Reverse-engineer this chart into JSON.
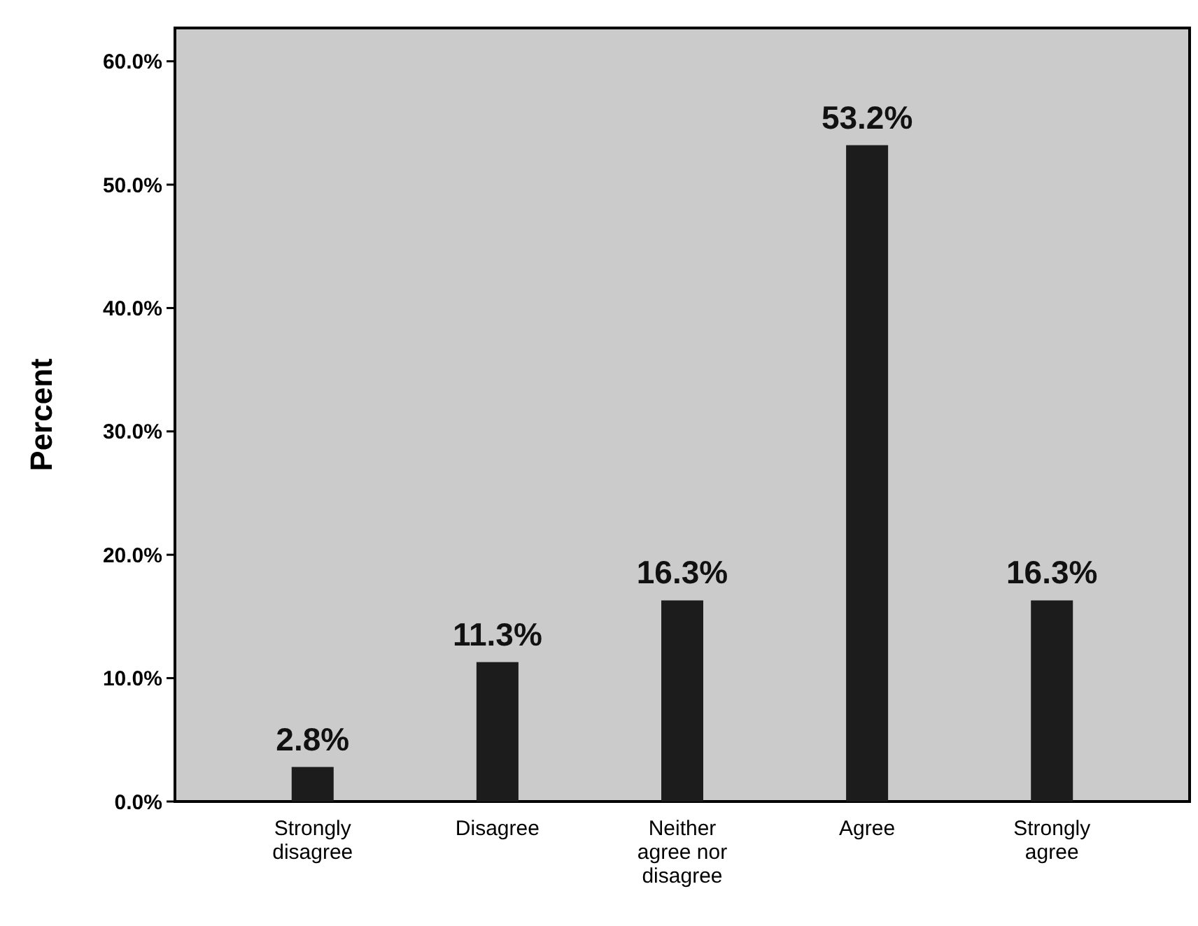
{
  "chart_data": {
    "type": "bar",
    "ylabel": "Percent",
    "categories": [
      "Strongly disagree",
      "Disagree",
      "Neither agree nor disagree",
      "Agree",
      "Strongly agree"
    ],
    "values": [
      2.8,
      11.3,
      16.3,
      53.2,
      16.3
    ],
    "value_labels": [
      "2.8%",
      "11.3%",
      "16.3%",
      "53.2%",
      "16.3%"
    ],
    "color": "#1c1c1c",
    "ylim": [
      0,
      62.7
    ],
    "yticks": [
      {
        "value": 0,
        "label": "0.0%"
      },
      {
        "value": 10,
        "label": "10.0%"
      },
      {
        "value": 20,
        "label": "20.0%"
      },
      {
        "value": 30,
        "label": "30.0%"
      },
      {
        "value": 40,
        "label": "40.0%"
      },
      {
        "value": 50,
        "label": "50.0%"
      },
      {
        "value": 60,
        "label": "60.0%"
      }
    ],
    "grid": false
  }
}
